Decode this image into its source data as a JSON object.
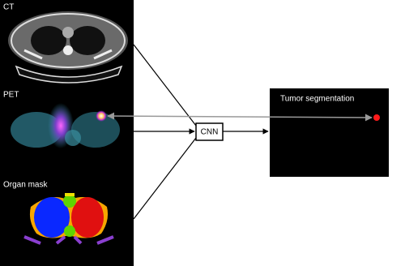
{
  "inputs": [
    {
      "label": "CT"
    },
    {
      "label": "PET"
    },
    {
      "label": "Organ mask"
    }
  ],
  "model": {
    "label": "CNN"
  },
  "output": {
    "label": "Tumor segmentation"
  }
}
